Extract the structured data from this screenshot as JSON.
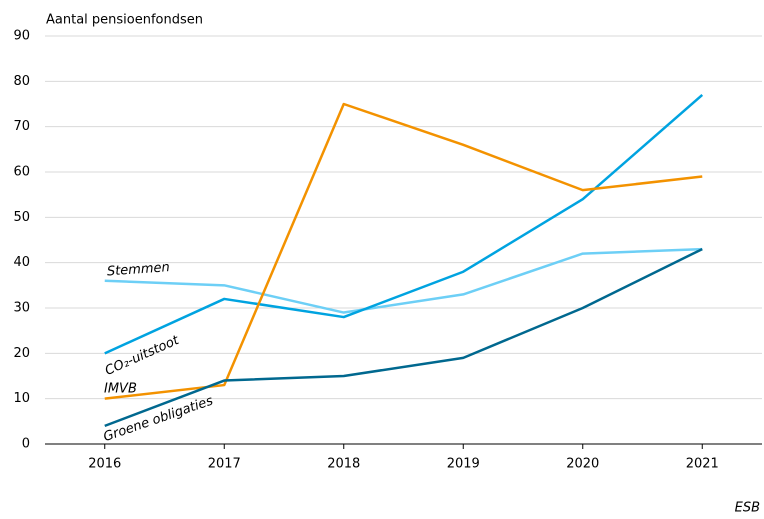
{
  "chart_data": {
    "type": "line",
    "y_axis_label": "Aantal pensioenfondsen",
    "source": "ESB",
    "categories": [
      "2016",
      "2017",
      "2018",
      "2019",
      "2020",
      "2021"
    ],
    "series": [
      {
        "name": "Stemmen",
        "color": "#6dcff6",
        "values": [
          36,
          35,
          29,
          33,
          42,
          43
        ]
      },
      {
        "name": "CO₂-uitstoot",
        "color": "#00a3e0",
        "values": [
          20,
          32,
          28,
          38,
          54,
          77
        ]
      },
      {
        "name": "IMVB",
        "color": "#f39200",
        "values": [
          10,
          13,
          75,
          66,
          56,
          59
        ]
      },
      {
        "name": "Groene obligaties",
        "color": "#00688f",
        "values": [
          4,
          14,
          15,
          19,
          30,
          43
        ]
      }
    ],
    "ylim": [
      0,
      90
    ],
    "yticks": [
      0,
      10,
      20,
      30,
      40,
      50,
      60,
      70,
      80,
      90
    ],
    "grid": true
  }
}
